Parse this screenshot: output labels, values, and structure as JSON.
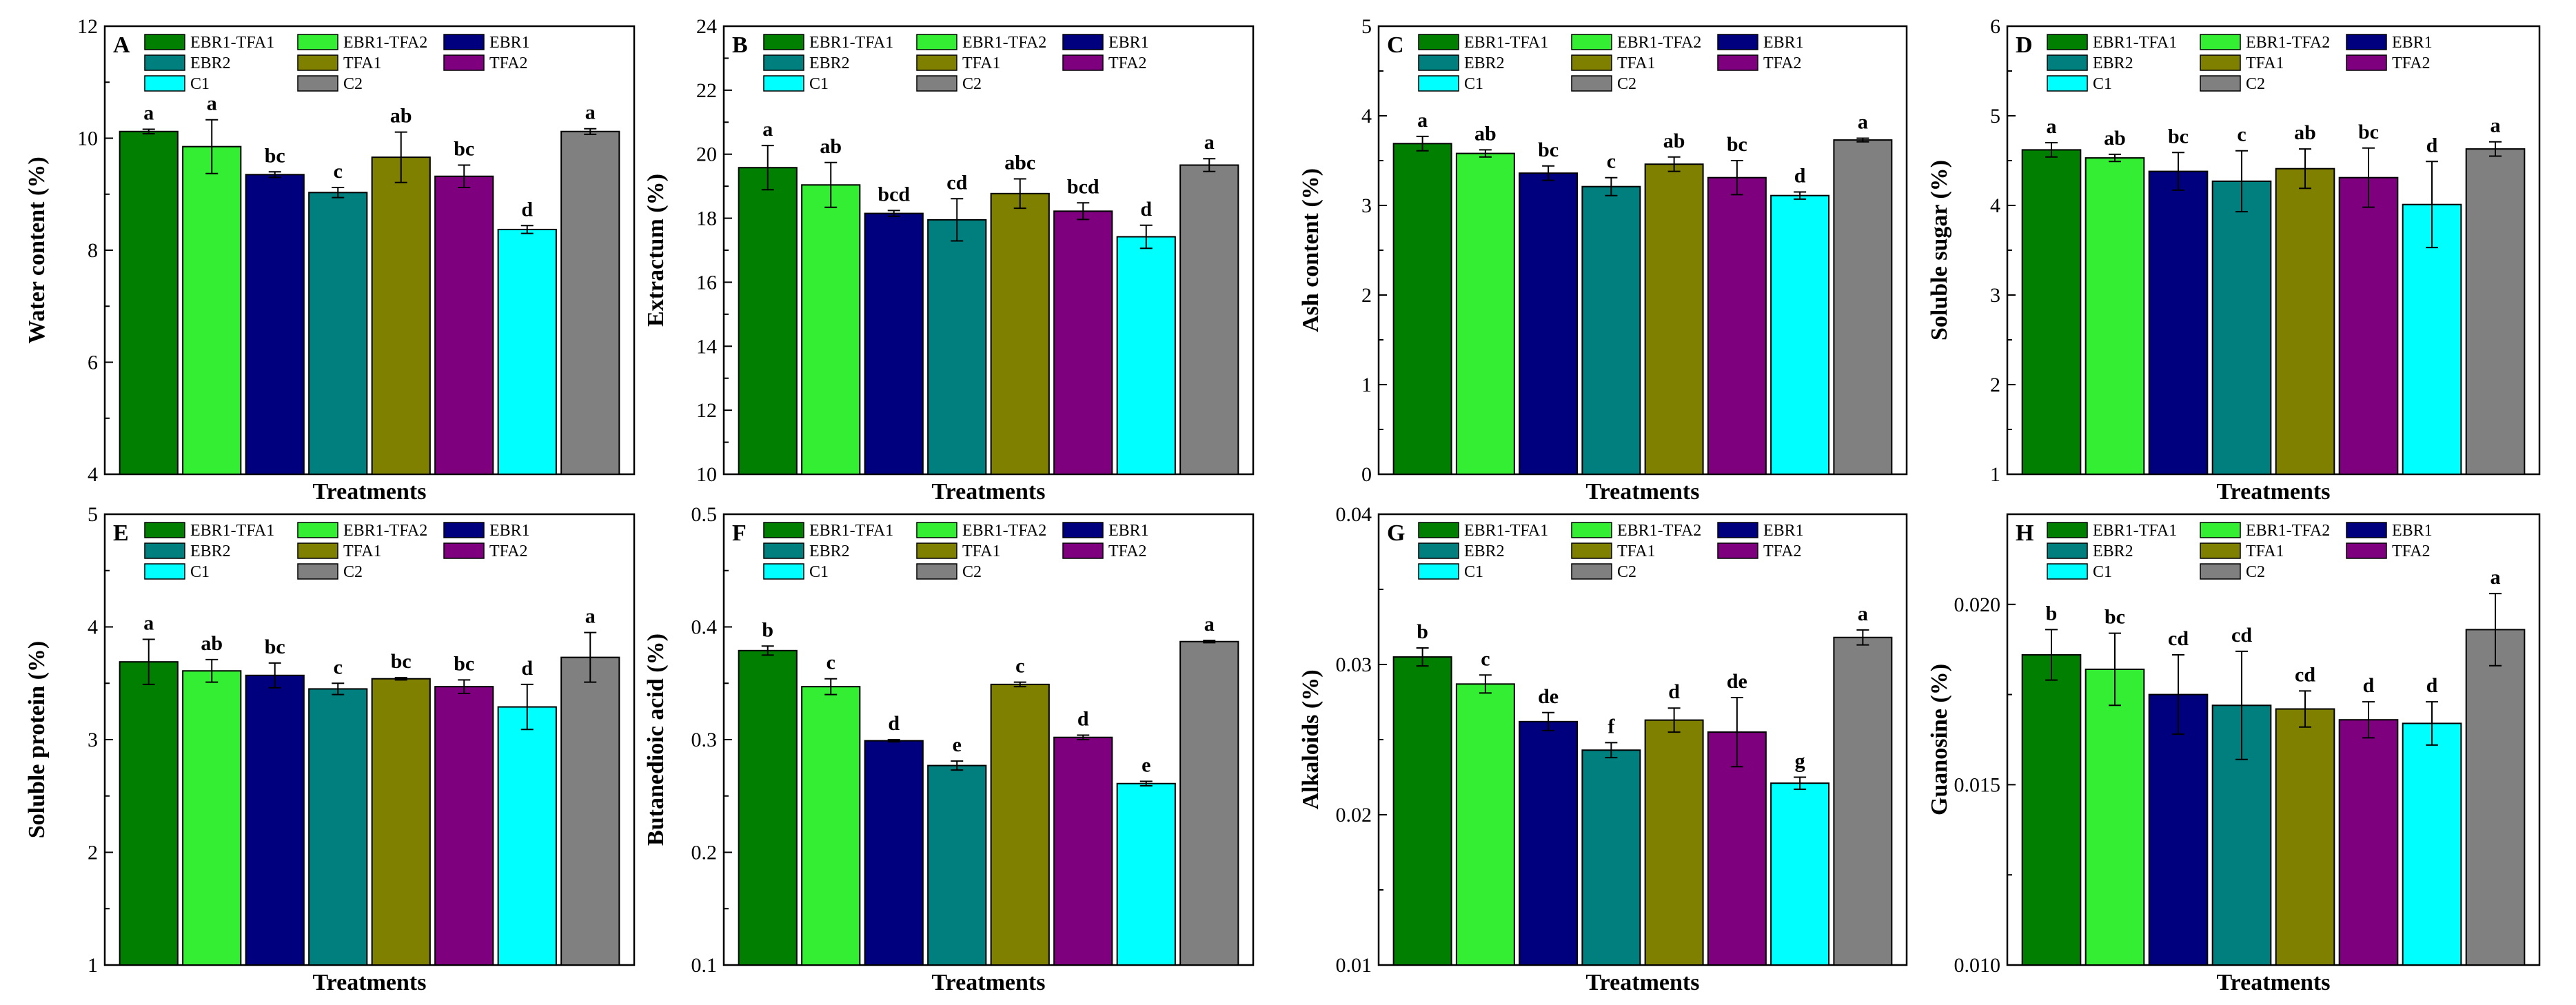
{
  "figure_title": "",
  "series_names": [
    "EBR1-TFA1",
    "EBR1-TFA2",
    "EBR1",
    "EBR2",
    "TFA1",
    "TFA2",
    "C1",
    "C2"
  ],
  "colors": {
    "EBR1-TFA1": "#007f00",
    "EBR1-TFA2": "#33ee33",
    "EBR1": "#00007f",
    "EBR2": "#007f7f",
    "TFA1": "#7f7f00",
    "TFA2": "#7f007f",
    "C1": "#00ffff",
    "C2": "#808080"
  },
  "chart_data": [
    {
      "type": "bar",
      "panel": "A",
      "title": "",
      "xlabel": "Treatments",
      "ylabel": "Water content (%)",
      "ylim": [
        4,
        12
      ],
      "yticks": [
        4,
        6,
        8,
        10,
        12
      ],
      "yticklabels": [
        "4",
        "6",
        "8",
        "10",
        "12"
      ],
      "categories": [
        "EBR1-TFA1",
        "EBR1-TFA2",
        "EBR1",
        "EBR2",
        "TFA1",
        "TFA2",
        "C1",
        "C2"
      ],
      "values": [
        10.12,
        9.85,
        9.35,
        9.03,
        9.66,
        9.32,
        8.37,
        10.12
      ],
      "errors": [
        0.04,
        0.48,
        0.05,
        0.09,
        0.45,
        0.2,
        0.07,
        0.05
      ],
      "significance": [
        "a",
        "a",
        "bc",
        "c",
        "ab",
        "bc",
        "d",
        "a"
      ],
      "legend": "top-left",
      "grid": false
    },
    {
      "type": "bar",
      "panel": "B",
      "title": "",
      "xlabel": "Treatments",
      "ylabel": "Extractum (%)",
      "ylim": [
        10,
        24
      ],
      "yticks": [
        10,
        12,
        14,
        16,
        18,
        20,
        22,
        24
      ],
      "yticklabels": [
        "10",
        "12",
        "14",
        "16",
        "18",
        "20",
        "22",
        "24"
      ],
      "categories": [
        "EBR1-TFA1",
        "EBR1-TFA2",
        "EBR1",
        "EBR2",
        "TFA1",
        "TFA2",
        "C1",
        "C2"
      ],
      "values": [
        19.58,
        19.04,
        18.15,
        17.95,
        18.77,
        18.22,
        17.42,
        19.66
      ],
      "errors": [
        0.69,
        0.7,
        0.09,
        0.66,
        0.46,
        0.26,
        0.36,
        0.2
      ],
      "significance": [
        "a",
        "ab",
        "bcd",
        "cd",
        "abc",
        "bcd",
        "d",
        "a"
      ],
      "legend": "top-left",
      "grid": false
    },
    {
      "type": "bar",
      "panel": "C",
      "title": "",
      "xlabel": "Treatments",
      "ylabel": "Ash content (%)",
      "ylim": [
        0,
        5
      ],
      "yticks": [
        0,
        1,
        2,
        3,
        4,
        5
      ],
      "yticklabels": [
        "0",
        "1",
        "2",
        "3",
        "4",
        "5"
      ],
      "categories": [
        "EBR1-TFA1",
        "EBR1-TFA2",
        "EBR1",
        "EBR2",
        "TFA1",
        "TFA2",
        "C1",
        "C2"
      ],
      "values": [
        3.69,
        3.58,
        3.36,
        3.21,
        3.46,
        3.31,
        3.11,
        3.73
      ],
      "errors": [
        0.08,
        0.04,
        0.08,
        0.1,
        0.08,
        0.19,
        0.04,
        0.02
      ],
      "significance": [
        "a",
        "ab",
        "bc",
        "c",
        "ab",
        "bc",
        "d",
        "a"
      ],
      "legend": "top-left",
      "grid": false
    },
    {
      "type": "bar",
      "panel": "D",
      "title": "",
      "xlabel": "Treatments",
      "ylabel": "Soluble sugar (%)",
      "ylim": [
        1,
        6
      ],
      "yticks": [
        1,
        2,
        3,
        4,
        5,
        6
      ],
      "yticklabels": [
        "1",
        "2",
        "3",
        "4",
        "5",
        "6"
      ],
      "categories": [
        "EBR1-TFA1",
        "EBR1-TFA2",
        "EBR1",
        "EBR2",
        "TFA1",
        "TFA2",
        "C1",
        "C2"
      ],
      "values": [
        4.62,
        4.53,
        4.38,
        4.27,
        4.41,
        4.31,
        4.01,
        4.63
      ],
      "errors": [
        0.08,
        0.04,
        0.21,
        0.34,
        0.22,
        0.33,
        0.48,
        0.08
      ],
      "significance": [
        "a",
        "ab",
        "bc",
        "c",
        "ab",
        "bc",
        "d",
        "a"
      ],
      "legend": "top-left",
      "grid": false
    },
    {
      "type": "bar",
      "panel": "E",
      "title": "",
      "xlabel": "Treatments",
      "ylabel": "Soluble protein (%)",
      "ylim": [
        1,
        5
      ],
      "yticks": [
        1,
        2,
        3,
        4,
        5
      ],
      "yticklabels": [
        "1",
        "2",
        "3",
        "4",
        "5"
      ],
      "categories": [
        "EBR1-TFA1",
        "EBR1-TFA2",
        "EBR1",
        "EBR2",
        "TFA1",
        "TFA2",
        "C1",
        "C2"
      ],
      "values": [
        3.69,
        3.61,
        3.57,
        3.45,
        3.54,
        3.47,
        3.29,
        3.73
      ],
      "errors": [
        0.2,
        0.1,
        0.11,
        0.05,
        0.01,
        0.06,
        0.2,
        0.22
      ],
      "significance": [
        "a",
        "ab",
        "bc",
        "c",
        "bc",
        "bc",
        "d",
        "a"
      ],
      "legend": "top-left",
      "grid": false
    },
    {
      "type": "bar",
      "panel": "F",
      "title": "",
      "xlabel": "Treatments",
      "ylabel": "Butanedioic acid (%)",
      "ylim": [
        0.1,
        0.5
      ],
      "yticks": [
        0.1,
        0.2,
        0.3,
        0.4,
        0.5
      ],
      "yticklabels": [
        "0.1",
        "0.2",
        "0.3",
        "0.4",
        "0.5"
      ],
      "categories": [
        "EBR1-TFA1",
        "EBR1-TFA2",
        "EBR1",
        "EBR2",
        "TFA1",
        "TFA2",
        "C1",
        "C2"
      ],
      "values": [
        0.379,
        0.347,
        0.299,
        0.277,
        0.349,
        0.302,
        0.261,
        0.387
      ],
      "errors": [
        0.004,
        0.007,
        0.001,
        0.004,
        0.002,
        0.002,
        0.002,
        0.001
      ],
      "significance": [
        "b",
        "c",
        "d",
        "e",
        "c",
        "d",
        "e",
        "a"
      ],
      "legend": "top-left",
      "grid": false
    },
    {
      "type": "bar",
      "panel": "G",
      "title": "",
      "xlabel": "Treatments",
      "ylabel": "Alkaloids (%)",
      "ylim": [
        0.01,
        0.04
      ],
      "yticks": [
        0.01,
        0.02,
        0.03,
        0.04
      ],
      "yticklabels": [
        "0.01",
        "0.02",
        "0.03",
        "0.04"
      ],
      "categories": [
        "EBR1-TFA1",
        "EBR1-TFA2",
        "EBR1",
        "EBR2",
        "TFA1",
        "TFA2",
        "C1",
        "C2"
      ],
      "values": [
        0.0305,
        0.0287,
        0.0262,
        0.0243,
        0.0263,
        0.0255,
        0.0221,
        0.0318
      ],
      "errors": [
        0.0006,
        0.0006,
        0.0006,
        0.0005,
        0.0008,
        0.0023,
        0.0004,
        0.0005
      ],
      "significance": [
        "b",
        "c",
        "de",
        "f",
        "d",
        "de",
        "g",
        "a"
      ],
      "legend": "top-left",
      "grid": false
    },
    {
      "type": "bar",
      "panel": "H",
      "title": "",
      "xlabel": "Treatments",
      "ylabel": "Guanosine (%)",
      "ylim": [
        0.01,
        0.0225
      ],
      "yticks": [
        0.01,
        0.015,
        0.02
      ],
      "yticklabels": [
        "0.010",
        "0.015",
        "0.020"
      ],
      "categories": [
        "EBR1-TFA1",
        "EBR1-TFA2",
        "EBR1",
        "EBR2",
        "TFA1",
        "TFA2",
        "C1",
        "C2"
      ],
      "values": [
        0.0186,
        0.0182,
        0.0175,
        0.0172,
        0.0171,
        0.0168,
        0.0167,
        0.0193
      ],
      "errors": [
        0.0007,
        0.001,
        0.0011,
        0.0015,
        0.0005,
        0.0005,
        0.0006,
        0.001
      ],
      "significance": [
        "b",
        "bc",
        "cd",
        "cd",
        "cd",
        "d",
        "d",
        "a"
      ],
      "legend": "top-left",
      "grid": false
    }
  ]
}
